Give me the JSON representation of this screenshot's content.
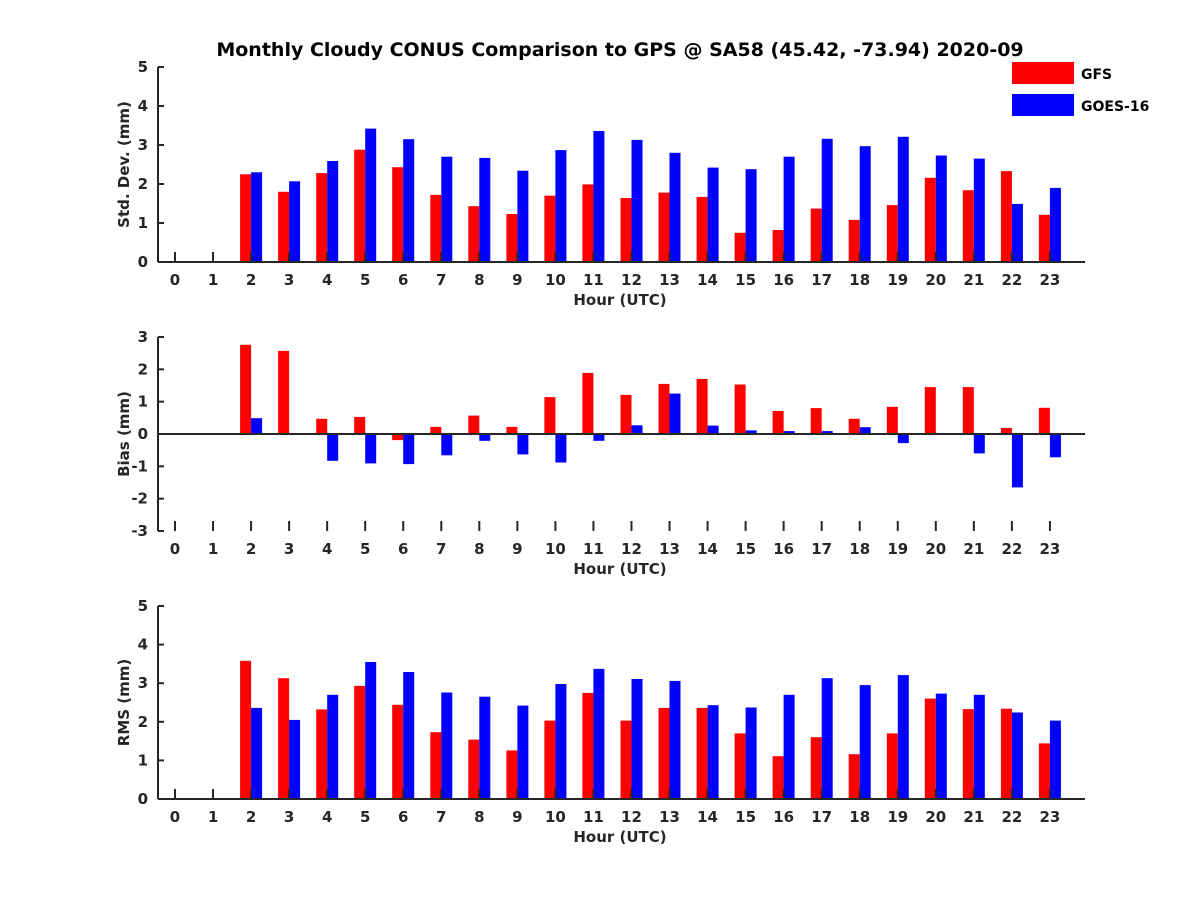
{
  "chart_data": {
    "title": "Monthly Cloudy CONUS Comparison to GPS @ SA58 (45.42, -73.94) 2020-09",
    "legend": {
      "placement": "top-right",
      "entries": [
        {
          "name": "GFS",
          "color": "#ff0000"
        },
        {
          "name": "GOES-16",
          "color": "#0000ff"
        }
      ]
    },
    "panels": [
      {
        "type": "bar",
        "id": "std",
        "xlabel": "Hour (UTC)",
        "ylabel": "Std. Dev. (mm)",
        "ylim": [
          0,
          5
        ],
        "yticks": [
          0,
          1,
          2,
          3,
          4,
          5
        ],
        "categories": [
          "0",
          "1",
          "2",
          "3",
          "4",
          "5",
          "6",
          "7",
          "8",
          "9",
          "10",
          "11",
          "12",
          "13",
          "14",
          "15",
          "16",
          "17",
          "18",
          "19",
          "20",
          "21",
          "22",
          "23"
        ],
        "series": [
          {
            "name": "GFS",
            "color": "#ff0000",
            "values": [
              null,
              null,
              2.25,
              1.8,
              2.28,
              2.88,
              2.43,
              1.72,
              1.43,
              1.23,
              1.7,
              1.99,
              1.64,
              1.78,
              1.67,
              0.75,
              0.82,
              1.37,
              1.08,
              1.46,
              2.16,
              1.84,
              2.33,
              1.21
            ]
          },
          {
            "name": "GOES-16",
            "color": "#0000ff",
            "values": [
              null,
              null,
              2.3,
              2.07,
              2.59,
              3.42,
              3.15,
              2.7,
              2.67,
              2.34,
              2.87,
              3.36,
              3.13,
              2.8,
              2.42,
              2.38,
              2.7,
              3.16,
              2.97,
              3.21,
              2.73,
              2.65,
              1.49,
              1.9
            ]
          }
        ]
      },
      {
        "type": "bar",
        "id": "bias",
        "xlabel": "Hour (UTC)",
        "ylabel": "Bias (mm)",
        "ylim": [
          -3,
          3
        ],
        "yticks": [
          -3,
          -2,
          -1,
          0,
          1,
          2,
          3
        ],
        "categories": [
          "0",
          "1",
          "2",
          "3",
          "4",
          "5",
          "6",
          "7",
          "8",
          "9",
          "10",
          "11",
          "12",
          "13",
          "14",
          "15",
          "16",
          "17",
          "18",
          "19",
          "20",
          "21",
          "22",
          "23"
        ],
        "series": [
          {
            "name": "GFS",
            "color": "#ff0000",
            "values": [
              null,
              null,
              2.76,
              2.57,
              0.47,
              0.53,
              -0.19,
              0.22,
              0.57,
              0.22,
              1.14,
              1.89,
              1.21,
              1.55,
              1.7,
              1.53,
              0.71,
              0.8,
              0.47,
              0.84,
              1.45,
              1.45,
              0.19,
              0.81
            ]
          },
          {
            "name": "GOES-16",
            "color": "#0000ff",
            "values": [
              null,
              null,
              0.49,
              0.0,
              -0.83,
              -0.91,
              -0.93,
              -0.66,
              -0.21,
              -0.63,
              -0.88,
              -0.21,
              0.27,
              1.25,
              0.26,
              0.11,
              0.09,
              0.09,
              0.21,
              -0.28,
              0.02,
              -0.6,
              -1.65,
              -0.72
            ]
          }
        ]
      },
      {
        "type": "bar",
        "id": "rms",
        "xlabel": "Hour (UTC)",
        "ylabel": "RMS (mm)",
        "ylim": [
          0,
          5
        ],
        "yticks": [
          0,
          1,
          2,
          3,
          4,
          5
        ],
        "categories": [
          "0",
          "1",
          "2",
          "3",
          "4",
          "5",
          "6",
          "7",
          "8",
          "9",
          "10",
          "11",
          "12",
          "13",
          "14",
          "15",
          "16",
          "17",
          "18",
          "19",
          "20",
          "21",
          "22",
          "23"
        ],
        "series": [
          {
            "name": "GFS",
            "color": "#ff0000",
            "values": [
              null,
              null,
              3.58,
              3.13,
              2.32,
              2.93,
              2.44,
              1.73,
              1.54,
              1.26,
              2.03,
              2.75,
              2.03,
              2.36,
              2.36,
              1.7,
              1.11,
              1.6,
              1.16,
              1.7,
              2.6,
              2.33,
              2.34,
              1.44
            ]
          },
          {
            "name": "GOES-16",
            "color": "#0000ff",
            "values": [
              null,
              null,
              2.36,
              2.05,
              2.7,
              3.55,
              3.29,
              2.76,
              2.65,
              2.42,
              2.98,
              3.37,
              3.11,
              3.06,
              2.43,
              2.37,
              2.7,
              3.13,
              2.95,
              3.21,
              2.73,
              2.7,
              2.24,
              2.03
            ]
          }
        ]
      }
    ]
  }
}
